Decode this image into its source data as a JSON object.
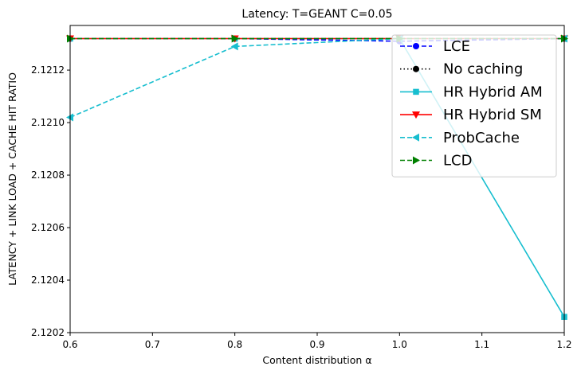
{
  "chart_data": {
    "type": "line",
    "title": "Latency: T=GEANT C=0.05",
    "xlabel": "Content distribution α",
    "ylabel": "LATENCY + LINK LOAD + CACHE HIT RATIO",
    "xlim": [
      0.6,
      1.2
    ],
    "ylim": [
      2.1202,
      2.12137
    ],
    "xticks": [
      "0.6",
      "0.7",
      "0.8",
      "0.9",
      "1.0",
      "1.1",
      "1.2"
    ],
    "yticks": [
      "2.1202",
      "2.1204",
      "2.1206",
      "2.1208",
      "2.1210",
      "2.1212"
    ],
    "grid": false,
    "legend_position": "top-right",
    "x": [
      0.6,
      0.8,
      1.0,
      1.2
    ],
    "series": [
      {
        "name": "LCE",
        "color": "#0000ff",
        "linestyle": "dashed",
        "marker": "circle",
        "values": [
          2.12132,
          2.12132,
          2.12131,
          2.12132
        ]
      },
      {
        "name": "No caching",
        "color": "#000000",
        "linestyle": "dotted",
        "marker": "circle",
        "values": [
          2.12132,
          2.12132,
          2.12132,
          2.12132
        ]
      },
      {
        "name": "HR Hybrid AM",
        "color": "#17becf",
        "linestyle": "solid",
        "marker": "square",
        "values": [
          2.12132,
          2.12132,
          2.12132,
          2.12026
        ]
      },
      {
        "name": "HR Hybrid SM",
        "color": "#ff0000",
        "linestyle": "solid",
        "marker": "triangle-down",
        "values": [
          2.12132,
          2.12132,
          2.12132,
          2.12132
        ]
      },
      {
        "name": "ProbCache",
        "color": "#17becf",
        "linestyle": "dashed",
        "marker": "triangle-left",
        "values": [
          2.12102,
          2.12129,
          2.12132,
          2.12132
        ]
      },
      {
        "name": "LCD",
        "color": "#008000",
        "linestyle": "dashed",
        "marker": "triangle-right",
        "values": [
          2.12132,
          2.12132,
          2.12132,
          2.12132
        ]
      }
    ]
  }
}
